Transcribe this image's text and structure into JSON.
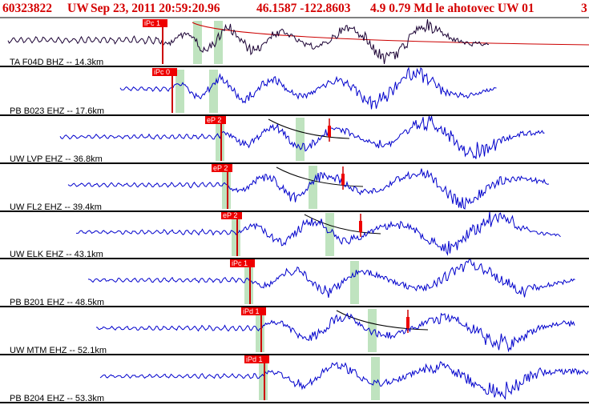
{
  "header": {
    "event_id": "60323822",
    "network": "UW",
    "datetime": "Sep 23, 2011 20:59:20.96",
    "coords": "46.1587 -122.8603",
    "magnitude": "4.9 0.79 Md le ahotovec UW 01",
    "page_num": "3"
  },
  "colors": {
    "header_text": "#d40000",
    "waveform_main": "#0000cc",
    "waveform_first": "#1a0033",
    "pick_box": "#ee0000",
    "pick_line": "#cc0000",
    "window_band": "#bfe3bf",
    "curve": "#000000",
    "first_curve": "#cc0000",
    "separator": "#000000"
  },
  "traces": [
    {
      "label": "TA F04D BHZ -- 14.3km",
      "pick": "iPc 1",
      "distance_km": 14.3
    },
    {
      "label": "PB B023 EHZ -- 17.6km",
      "pick": "iPc 0",
      "distance_km": 17.6
    },
    {
      "label": "UW LVP EHZ -- 36.8km",
      "pick": "eP 2",
      "distance_km": 36.8
    },
    {
      "label": "UW FL2 EHZ -- 39.4km",
      "pick": "eP 2",
      "distance_km": 39.4
    },
    {
      "label": "UW ELK EHZ -- 43.1km",
      "pick": "eP 2",
      "distance_km": 43.1
    },
    {
      "label": "PB B201 EHZ -- 48.5km",
      "pick": "iPc 1",
      "distance_km": 48.5
    },
    {
      "label": "UW MTM EHZ -- 52.1km",
      "pick": "iPd 1",
      "distance_km": 52.1
    },
    {
      "label": "PB B204 EHZ -- 53.3km",
      "pick": "iPd 1",
      "distance_km": 53.3
    }
  ]
}
